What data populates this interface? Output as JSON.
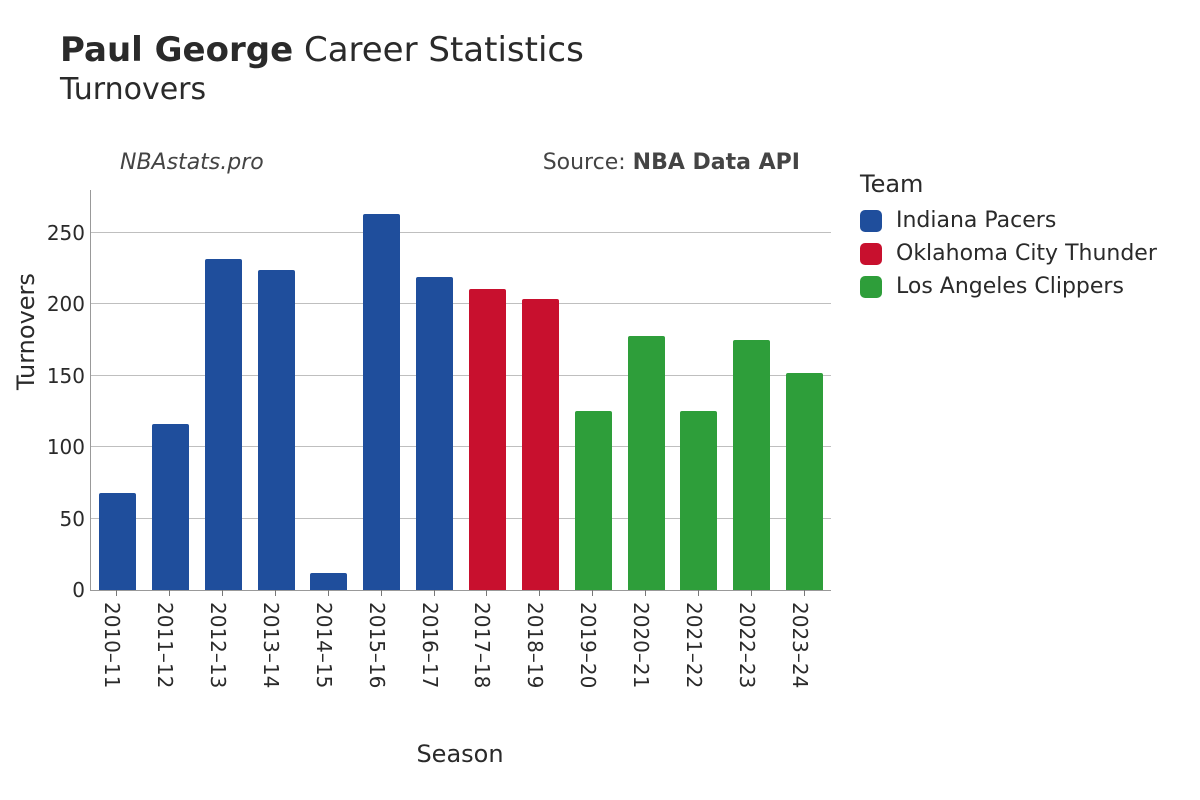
{
  "title": {
    "player": "Paul George",
    "rest": "Career Statistics",
    "subtitle": "Turnovers"
  },
  "credits": {
    "site": "NBAstats.pro",
    "source_prefix": "Source: ",
    "source_name": "NBA Data API"
  },
  "chart": {
    "type": "bar",
    "xlabel": "Season",
    "ylabel": "Turnovers",
    "ylim": [
      0,
      280
    ],
    "ytick_step": 50,
    "yticks": [
      0,
      50,
      100,
      150,
      200,
      250
    ],
    "grid_color": "#bfbfbf",
    "axis_color": "#999999",
    "background_color": "#ffffff",
    "label_fontsize": 24,
    "tick_fontsize": 20,
    "bar_width_ratio": 0.7,
    "categories": [
      "2010–11",
      "2011–12",
      "2012–13",
      "2013–14",
      "2014–15",
      "2015–16",
      "2016–17",
      "2017–18",
      "2018–19",
      "2019–20",
      "2020–21",
      "2021–22",
      "2022–23",
      "2023–24"
    ],
    "values": [
      68,
      116,
      232,
      224,
      12,
      263,
      219,
      211,
      204,
      125,
      178,
      125,
      175,
      152
    ],
    "team_index": [
      0,
      0,
      0,
      0,
      0,
      0,
      0,
      1,
      1,
      2,
      2,
      2,
      2,
      2
    ],
    "team_colors": [
      "#1f4e9c",
      "#c8102e",
      "#2e9e3a"
    ]
  },
  "legend": {
    "title": "Team",
    "items": [
      {
        "label": "Indiana Pacers",
        "color": "#1f4e9c"
      },
      {
        "label": "Oklahoma City Thunder",
        "color": "#c8102e"
      },
      {
        "label": "Los Angeles Clippers",
        "color": "#2e9e3a"
      }
    ]
  }
}
